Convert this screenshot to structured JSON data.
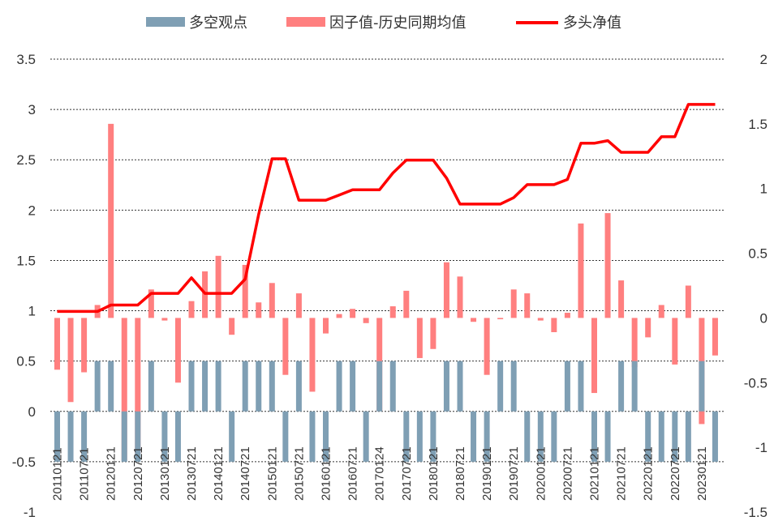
{
  "chart_data": {
    "type": "bar",
    "legend_position": "top",
    "grid": "horizontal-dotted",
    "series": [
      {
        "name": "多空观点",
        "type": "bar",
        "axis": "left",
        "color": "#7f9fb4",
        "values": [
          -0.5,
          -0.5,
          -0.5,
          0.5,
          0.5,
          -0.5,
          -0.5,
          0.5,
          -0.5,
          -0.5,
          0.5,
          0.5,
          0.5,
          -0.5,
          0.5,
          0.5,
          0.5,
          -0.5,
          0.5,
          -0.5,
          -0.5,
          0.5,
          0.5,
          -0.5,
          0.5,
          0.5,
          -0.5,
          -0.5,
          -0.5,
          0.5,
          0.5,
          -0.5,
          -0.5,
          0.5,
          0.5,
          -0.5,
          -0.5,
          -0.5,
          0.5,
          0.5,
          -0.5,
          -0.5,
          0.5,
          0.5,
          -0.5,
          -0.5,
          -0.5,
          -0.5,
          0.5,
          -0.5
        ]
      },
      {
        "name": "因子值-历史同期均值",
        "type": "bar",
        "axis": "right",
        "color": "#ff7f7f",
        "values": [
          -0.4,
          -0.65,
          -0.42,
          0.1,
          1.5,
          -1.1,
          -1.05,
          0.22,
          -0.02,
          -0.5,
          0.13,
          0.36,
          0.48,
          -0.13,
          0.41,
          0.12,
          0.27,
          -0.44,
          0.19,
          -0.57,
          -0.12,
          0.03,
          0.07,
          -0.04,
          -0.72,
          0.09,
          0.21,
          -0.31,
          -0.24,
          0.43,
          0.32,
          -0.03,
          -0.44,
          -0.01,
          0.22,
          0.19,
          -0.02,
          -0.11,
          0.04,
          0.73,
          -0.58,
          0.81,
          0.29,
          -0.38,
          -0.15,
          0.1,
          -0.36,
          0.25,
          -0.82,
          -0.29
        ]
      },
      {
        "name": "多头净值",
        "type": "line",
        "axis": "right",
        "color": "#ff0000",
        "values": [
          0.05,
          0.05,
          0.05,
          0.05,
          0.1,
          0.1,
          0.1,
          0.19,
          0.19,
          0.19,
          0.31,
          0.19,
          0.19,
          0.19,
          0.3,
          0.8,
          1.23,
          1.23,
          0.91,
          0.91,
          0.91,
          0.95,
          0.99,
          0.99,
          0.99,
          1.12,
          1.22,
          1.22,
          1.22,
          1.08,
          0.88,
          0.88,
          0.88,
          0.88,
          0.93,
          1.03,
          1.03,
          1.03,
          1.07,
          1.35,
          1.35,
          1.37,
          1.28,
          1.28,
          1.28,
          1.4,
          1.4,
          1.65,
          1.65,
          1.65
        ]
      }
    ],
    "categories": [
      "20110121",
      "20110421",
      "20110721",
      "20111021",
      "20120121",
      "20120421",
      "20120721",
      "20121021",
      "20130121",
      "20130421",
      "20130721",
      "20131021",
      "20140121",
      "20140421",
      "20140721",
      "20141021",
      "20150121",
      "20150421",
      "20150721",
      "20151021",
      "20160121",
      "20160421",
      "20160721",
      "20161021",
      "20170124",
      "20170421",
      "20170721",
      "20171021",
      "20180121",
      "20180421",
      "20180721",
      "20181021",
      "20190121",
      "20190421",
      "20190721",
      "20191021",
      "20200121",
      "20200421",
      "20200721",
      "20201021",
      "20210121",
      "20210421",
      "20210721",
      "20211021",
      "20220121",
      "20220421",
      "20220721",
      "20221021",
      "20230121",
      "20230421"
    ],
    "x_tick_labels": [
      "20110121",
      "20110721",
      "20120121",
      "20120721",
      "20130121",
      "20130721",
      "20140121",
      "20140721",
      "20150121",
      "20150721",
      "20160121",
      "20160721",
      "20170124",
      "20170721",
      "20180121",
      "20180721",
      "20190121",
      "20190721",
      "20200121",
      "20200721",
      "20210121",
      "20210721",
      "20220121",
      "20220721",
      "20230121"
    ],
    "left_axis": {
      "ylim": [
        -1,
        3.5
      ],
      "ticks": [
        "-1",
        "-0.5",
        "0",
        "0.5",
        "1",
        "1.5",
        "2",
        "2.5",
        "3",
        "3.5"
      ],
      "tick_values": [
        -1,
        -0.5,
        0,
        0.5,
        1,
        1.5,
        2,
        2.5,
        3,
        3.5
      ]
    },
    "right_axis": {
      "ylim": [
        -1.5,
        2
      ],
      "ticks": [
        "-1.5",
        "-1",
        "-0.5",
        "0",
        "0.5",
        "1",
        "1.5",
        "2"
      ],
      "tick_values": [
        -1.5,
        -1,
        -0.5,
        0,
        0.5,
        1,
        1.5,
        2
      ]
    }
  }
}
